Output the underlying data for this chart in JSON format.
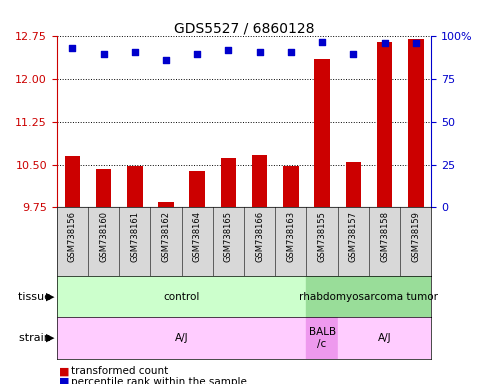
{
  "title": "GDS5527 / 6860128",
  "samples": [
    "GSM738156",
    "GSM738160",
    "GSM738161",
    "GSM738162",
    "GSM738164",
    "GSM738165",
    "GSM738166",
    "GSM738163",
    "GSM738155",
    "GSM738157",
    "GSM738158",
    "GSM738159"
  ],
  "bar_values": [
    10.65,
    10.42,
    10.47,
    9.85,
    10.38,
    10.62,
    10.67,
    10.47,
    12.35,
    10.55,
    12.65,
    12.7
  ],
  "dot_values": [
    93,
    90,
    91,
    86,
    90,
    92,
    91,
    91,
    97,
    90,
    96,
    96
  ],
  "bar_color": "#cc0000",
  "dot_color": "#0000cc",
  "ylim_left": [
    9.75,
    12.75
  ],
  "ylim_right": [
    0,
    100
  ],
  "yticks_left": [
    9.75,
    10.5,
    11.25,
    12.0,
    12.75
  ],
  "yticks_right": [
    0,
    25,
    50,
    75,
    100
  ],
  "tissue_groups": [
    {
      "label": "control",
      "start": 0,
      "end": 8,
      "color": "#ccffcc"
    },
    {
      "label": "rhabdomyosarcoma tumor",
      "start": 8,
      "end": 12,
      "color": "#99dd99"
    }
  ],
  "strain_groups": [
    {
      "label": "A/J",
      "start": 0,
      "end": 8,
      "color": "#ffccff"
    },
    {
      "label": "BALB\n/c",
      "start": 8,
      "end": 9,
      "color": "#ee99ee"
    },
    {
      "label": "A/J",
      "start": 9,
      "end": 12,
      "color": "#ffccff"
    }
  ],
  "legend_items": [
    {
      "color": "#cc0000",
      "label": "transformed count"
    },
    {
      "color": "#0000cc",
      "label": "percentile rank within the sample"
    }
  ],
  "bar_width": 0.5,
  "xlabel_bg": "#d8d8d8",
  "fig_width": 4.93,
  "fig_height": 3.84
}
